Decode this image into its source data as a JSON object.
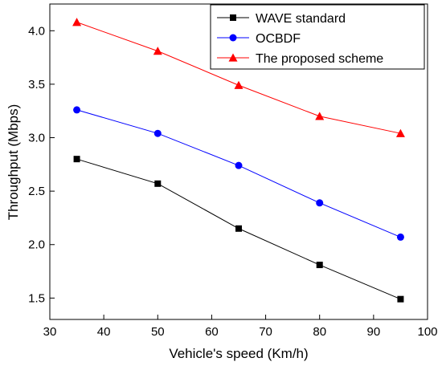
{
  "chart_data": {
    "type": "line",
    "title": "",
    "xlabel": "Vehicle's speed (Km/h)",
    "ylabel": "Throughput (Mbps)",
    "xlim": [
      30,
      100
    ],
    "ylim": [
      1.3,
      4.25
    ],
    "xticks": [
      30,
      40,
      50,
      60,
      70,
      80,
      90,
      100
    ],
    "yticks": [
      1.5,
      2.0,
      2.5,
      3.0,
      3.5,
      4.0
    ],
    "ytick_labels": [
      "1.5",
      "2.0",
      "2.5",
      "3.0",
      "3.5",
      "4.0"
    ],
    "grid": false,
    "legend_position": "top-right",
    "x": [
      35,
      50,
      65,
      80,
      95
    ],
    "series": [
      {
        "name": "WAVE standard",
        "values": [
          2.8,
          2.57,
          2.15,
          1.81,
          1.49
        ],
        "color": "#000000",
        "marker": "square"
      },
      {
        "name": "OCBDF",
        "values": [
          3.26,
          3.04,
          2.74,
          2.39,
          2.07
        ],
        "color": "#0000ff",
        "marker": "circle"
      },
      {
        "name": "The proposed scheme",
        "values": [
          4.08,
          3.81,
          3.49,
          3.2,
          3.04
        ],
        "color": "#ff0000",
        "marker": "triangle"
      }
    ]
  }
}
